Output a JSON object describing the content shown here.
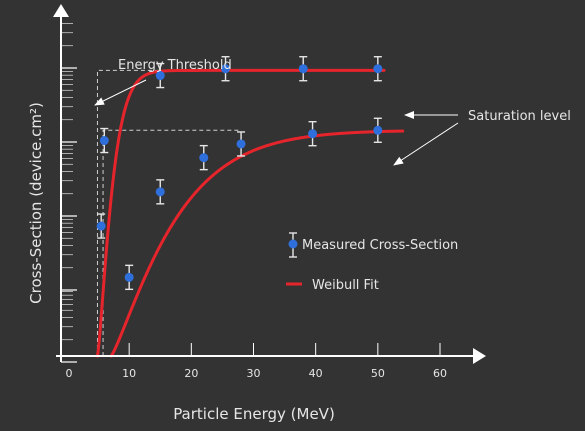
{
  "chart_data": {
    "type": "scatter",
    "xlabel": "Particle Energy (MeV)",
    "ylabel": "Cross-Section (device.cm²)",
    "xlim": [
      0,
      60
    ],
    "x_ticks": [
      "0",
      "10",
      "20",
      "30",
      "40",
      "50",
      "60"
    ],
    "grid": false,
    "legend_position": "lower-right",
    "annotations": {
      "threshold": "Energy Threshold",
      "saturation": "Saturation level"
    },
    "legend": {
      "measured": "Measured Cross-Section",
      "fit": "Weibull Fit"
    },
    "series": [
      {
        "name": "Measured Cross-Section",
        "points": [
          {
            "x": 5.5,
            "y": 0.38
          },
          {
            "x": 6.0,
            "y": 0.63
          },
          {
            "x": 15.0,
            "y": 0.82
          },
          {
            "x": 25.5,
            "y": 0.84
          },
          {
            "x": 38.0,
            "y": 0.84
          },
          {
            "x": 50.0,
            "y": 0.84
          }
        ]
      },
      {
        "name": "Measured Cross-Section",
        "points": [
          {
            "x": 10.0,
            "y": 0.23
          },
          {
            "x": 15.0,
            "y": 0.48
          },
          {
            "x": 22.0,
            "y": 0.58
          },
          {
            "x": 28.0,
            "y": 0.62
          },
          {
            "x": 39.5,
            "y": 0.65
          },
          {
            "x": 50.0,
            "y": 0.66
          }
        ]
      }
    ],
    "fits": [
      {
        "name": "Weibull Fit",
        "threshold": 4.9,
        "saturation": 0.835,
        "width": 2.6,
        "shape": 1.3,
        "x_end": 51.0
      },
      {
        "name": "Weibull Fit",
        "threshold": 7.1,
        "saturation": 0.66,
        "width": 11.0,
        "shape": 1.2,
        "x_end": 54.0
      }
    ],
    "colors": {
      "background": "#333333",
      "axis": "#ffffff",
      "marker": "#2f6fdb",
      "fit": "#e5242b",
      "text": "#e6e6e6"
    }
  }
}
